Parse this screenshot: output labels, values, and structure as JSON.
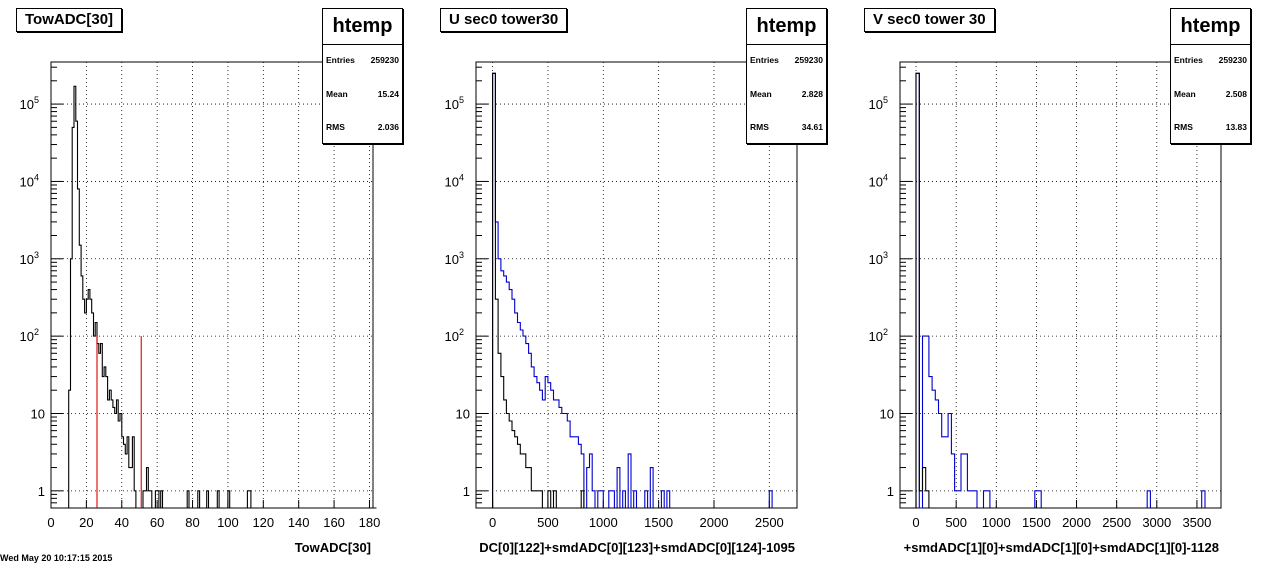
{
  "footer_text": "Wed May 20 10:17:15 2015",
  "chart_data": [
    {
      "type": "histogram",
      "title": "TowADC[30]",
      "xlabel": "TowADC[30]",
      "ylabel": "",
      "log_y": true,
      "grid": true,
      "xlim": [
        0,
        182
      ],
      "ylim": [
        0.6,
        350000
      ],
      "xticks": [
        0,
        20,
        40,
        60,
        80,
        100,
        120,
        140,
        160,
        180
      ],
      "yticks": [
        {
          "v": 1,
          "label": "1"
        },
        {
          "v": 10,
          "label": "10"
        },
        {
          "v": 100,
          "label": "10",
          "sup": "2"
        },
        {
          "v": 1000,
          "label": "10",
          "sup": "3"
        },
        {
          "v": 10000,
          "label": "10",
          "sup": "4"
        },
        {
          "v": 100000,
          "label": "10",
          "sup": "5"
        }
      ],
      "stats": {
        "name": "htemp",
        "entries_label": "Entries",
        "entries": "259230",
        "mean_label": "Mean",
        "mean": "15.24",
        "rms_label": "RMS",
        "rms": "2.036"
      },
      "series": [
        {
          "color": "#000000",
          "bin_width": 1,
          "x_start": 10,
          "values": [
            20,
            1000,
            50000,
            170000,
            60000,
            8000,
            1500,
            600,
            300,
            200,
            300,
            400,
            300,
            200,
            100,
            150,
            80,
            60,
            80,
            30,
            40,
            30,
            15,
            20,
            15,
            12,
            10,
            15,
            8,
            10,
            5,
            4,
            3,
            5,
            2,
            2,
            5,
            1,
            0,
            0,
            0,
            0,
            1,
            1,
            2,
            1,
            1,
            0,
            0,
            1,
            1,
            0,
            1,
            0,
            0,
            0,
            0,
            0,
            0,
            0,
            0,
            0,
            0,
            0,
            0,
            0,
            0,
            1,
            0,
            0,
            0,
            0,
            0,
            1,
            0,
            0,
            0,
            0,
            1,
            0,
            0,
            0,
            0,
            0,
            1,
            0,
            0,
            0,
            0,
            0,
            1,
            0,
            0,
            0,
            0,
            0,
            0,
            0,
            0,
            0,
            0,
            1,
            1,
            0,
            0,
            0,
            0,
            0,
            0,
            0,
            0,
            0,
            0,
            0,
            0,
            0,
            0,
            0,
            0,
            0,
            0,
            0,
            0,
            0,
            0,
            0,
            0,
            0,
            0,
            0,
            0,
            0,
            0,
            0,
            0,
            0,
            0,
            0,
            0,
            0,
            0,
            0,
            0,
            0,
            0,
            0,
            0,
            0,
            0,
            0,
            0,
            0,
            0,
            0,
            0,
            0,
            0,
            0,
            0,
            0,
            0,
            0,
            0,
            0,
            0,
            0,
            0,
            0,
            0,
            0,
            0,
            0,
            0,
            0
          ]
        }
      ],
      "markers": [
        {
          "x": 26,
          "y": 100,
          "color": "#e00000"
        },
        {
          "x": 51,
          "y": 100,
          "color": "#e00000"
        }
      ]
    },
    {
      "type": "histogram",
      "title": "U sec0 tower30",
      "xlabel": "DC[0][122]+smdADC[0][123]+smdADC[0][124]-1095",
      "ylabel": "",
      "log_y": true,
      "grid": true,
      "xlim": [
        -150,
        2750
      ],
      "ylim": [
        0.6,
        350000
      ],
      "xticks": [
        0,
        500,
        1000,
        1500,
        2000,
        2500
      ],
      "yticks": [
        {
          "v": 1,
          "label": "1"
        },
        {
          "v": 10,
          "label": "10"
        },
        {
          "v": 100,
          "label": "10",
          "sup": "2"
        },
        {
          "v": 1000,
          "label": "10",
          "sup": "3"
        },
        {
          "v": 10000,
          "label": "10",
          "sup": "4"
        },
        {
          "v": 100000,
          "label": "10",
          "sup": "5"
        }
      ],
      "stats": {
        "name": "htemp",
        "entries_label": "Entries",
        "entries": "259230",
        "mean_label": "Mean",
        "mean": "2.828",
        "rms_label": "RMS",
        "rms": "34.61"
      },
      "series": [
        {
          "color": "#0000cc",
          "bin_width": 25,
          "x_start": 0,
          "values": [
            250000,
            3000,
            1000,
            700,
            600,
            500,
            400,
            300,
            200,
            150,
            120,
            100,
            80,
            60,
            40,
            30,
            25,
            20,
            15,
            30,
            25,
            20,
            15,
            15,
            12,
            10,
            10,
            8,
            5,
            5,
            5,
            4,
            3,
            0,
            2,
            3,
            1,
            0,
            1,
            1,
            0,
            0,
            1,
            1,
            0,
            2,
            0,
            1,
            0,
            3,
            0,
            1,
            0,
            0,
            0,
            1,
            0,
            2,
            0,
            0,
            0,
            1,
            0,
            1,
            0,
            0,
            0,
            0,
            0,
            0,
            0,
            0,
            0,
            0,
            0,
            0,
            0,
            0,
            0,
            0,
            0,
            0,
            0,
            0,
            0,
            0,
            0,
            0,
            0,
            0,
            0,
            0,
            0,
            0,
            0,
            0,
            0,
            0,
            0,
            0,
            1
          ]
        },
        {
          "color": "#000000",
          "bin_width": 25,
          "x_start": 0,
          "values": [
            250000,
            300,
            60,
            30,
            15,
            10,
            8,
            6,
            5,
            4,
            3,
            3,
            2,
            2,
            1,
            1,
            1,
            1,
            0,
            0,
            1,
            0,
            1,
            0,
            0,
            0,
            0,
            0,
            0,
            0,
            0,
            0,
            1,
            0,
            0,
            0,
            0,
            0,
            0,
            0,
            0,
            0,
            0,
            0,
            0,
            0,
            0,
            0,
            0,
            0,
            0,
            0,
            0,
            0,
            0,
            0,
            0,
            0,
            0,
            0,
            0,
            0,
            0,
            0,
            0,
            0,
            0,
            0,
            0,
            0,
            0,
            0,
            0,
            0,
            0,
            0,
            0,
            0,
            0,
            0,
            0,
            0,
            0,
            0,
            0,
            0,
            0,
            0,
            0,
            0,
            0,
            0,
            0,
            0,
            0,
            0,
            0,
            0,
            0,
            0,
            0
          ]
        }
      ],
      "markers": []
    },
    {
      "type": "histogram",
      "title": "V sec0 tower 30",
      "xlabel": "+smdADC[1][0]+smdADC[1][0]+smdADC[1][0]-1128",
      "ylabel": "",
      "log_y": true,
      "grid": true,
      "xlim": [
        -200,
        3800
      ],
      "ylim": [
        0.6,
        350000
      ],
      "xticks": [
        0,
        500,
        1000,
        1500,
        2000,
        2500,
        3000,
        3500
      ],
      "yticks": [
        {
          "v": 1,
          "label": "1"
        },
        {
          "v": 10,
          "label": "10"
        },
        {
          "v": 100,
          "label": "10",
          "sup": "2"
        },
        {
          "v": 1000,
          "label": "10",
          "sup": "3"
        },
        {
          "v": 10000,
          "label": "10",
          "sup": "4"
        },
        {
          "v": 100000,
          "label": "10",
          "sup": "5"
        }
      ],
      "stats": {
        "name": "htemp",
        "entries_label": "Entries",
        "entries": "259230",
        "mean_label": "Mean",
        "mean": "2.508",
        "rms_label": "RMS",
        "rms": "13.83"
      },
      "series": [
        {
          "color": "#0000cc",
          "bin_width": 40,
          "x_start": -40,
          "values": [
            0,
            250000,
            0,
            100,
            100,
            30,
            20,
            15,
            10,
            5,
            5,
            10,
            3,
            1,
            1,
            3,
            3,
            1,
            1,
            1,
            0,
            0,
            1,
            1,
            0,
            0,
            0,
            0,
            0,
            0,
            0,
            0,
            0,
            0,
            0,
            0,
            0,
            0,
            1,
            1,
            0,
            0,
            0,
            0,
            0,
            0,
            0,
            0,
            0,
            0,
            0,
            0,
            0,
            0,
            0,
            0,
            0,
            0,
            0,
            0,
            0,
            0,
            0,
            0,
            0,
            0,
            0,
            0,
            0,
            0,
            0,
            0,
            0,
            1,
            0,
            0,
            0,
            0,
            0,
            0,
            0,
            0,
            0,
            0,
            0,
            0,
            0,
            0,
            0,
            0,
            1
          ]
        },
        {
          "color": "#000000",
          "bin_width": 40,
          "x_start": -40,
          "values": [
            0,
            250000,
            1,
            2,
            1,
            0,
            0,
            0,
            0,
            0,
            0,
            0,
            0,
            0,
            0,
            0,
            0,
            0,
            0,
            0,
            0,
            0,
            0,
            0,
            0,
            0,
            0,
            0,
            0,
            0,
            0,
            0,
            0,
            0,
            0,
            0,
            0,
            0,
            0,
            0,
            0,
            0,
            0,
            0,
            0,
            0,
            0,
            0,
            0,
            0,
            0,
            0,
            0,
            0,
            0,
            0,
            0,
            0,
            0,
            0,
            0,
            0,
            0,
            0,
            0,
            0,
            0,
            0,
            0,
            0,
            0,
            0,
            0,
            0,
            0,
            0,
            0,
            0,
            0,
            0,
            0,
            0,
            0,
            0,
            0,
            0,
            0,
            0,
            0,
            0,
            0
          ]
        }
      ],
      "markers": []
    }
  ]
}
